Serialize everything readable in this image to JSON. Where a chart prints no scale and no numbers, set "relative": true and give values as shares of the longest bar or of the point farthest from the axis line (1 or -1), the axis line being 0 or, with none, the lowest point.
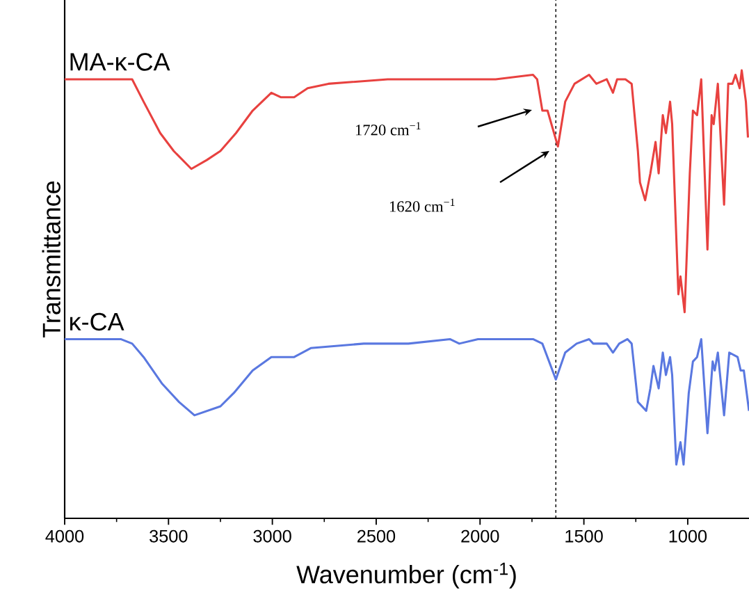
{
  "chart_data": {
    "type": "line",
    "relative": true,
    "xlabel": "Wavenumber (cm$^{-1}$)",
    "ylabel": "Transmittance",
    "xlim": [
      4000,
      705
    ],
    "xticks": [
      4000,
      {
        "value": 3750,
        "label": null
      },
      3500,
      {
        "value": 3250,
        "label": null
      },
      3000,
      {
        "value": 2750,
        "label": null
      },
      2500,
      {
        "value": 2250,
        "label": null
      },
      2000,
      {
        "value": 1750,
        "label": null
      },
      1500,
      {
        "value": 1250,
        "label": null
      },
      1000
    ],
    "tick_labels": "x",
    "series": [
      {
        "name": "MA-κ-CA",
        "color": "#e8413f",
        "x": [
          4000,
          3710,
          3675,
          3620,
          3540,
          3475,
          3390,
          3315,
          3250,
          3175,
          3095,
          3005,
          2960,
          2940,
          2895,
          2830,
          2730,
          2445,
          2370,
          2145,
          1925,
          1745,
          1725,
          1700,
          1675,
          1625,
          1590,
          1545,
          1475,
          1440,
          1390,
          1360,
          1340,
          1300,
          1270,
          1240,
          1230,
          1205,
          1180,
          1155,
          1140,
          1120,
          1105,
          1085,
          1075,
          1045,
          1035,
          1015,
          990,
          975,
          955,
          935,
          905,
          885,
          875,
          855,
          825,
          805,
          785,
          770,
          750,
          740,
          720,
          710
        ],
        "values": [
          0.98,
          0.98,
          0.98,
          0.93,
          0.86,
          0.82,
          0.78,
          0.8,
          0.82,
          0.86,
          0.91,
          0.95,
          0.94,
          0.94,
          0.94,
          0.96,
          0.97,
          0.98,
          0.98,
          0.98,
          0.98,
          0.99,
          0.98,
          0.91,
          0.91,
          0.83,
          0.93,
          0.97,
          0.99,
          0.97,
          0.98,
          0.95,
          0.98,
          0.98,
          0.97,
          0.82,
          0.75,
          0.71,
          0.77,
          0.84,
          0.77,
          0.9,
          0.86,
          0.93,
          0.88,
          0.5,
          0.54,
          0.46,
          0.77,
          0.91,
          0.9,
          0.98,
          0.6,
          0.9,
          0.88,
          0.97,
          0.7,
          0.97,
          0.97,
          0.99,
          0.96,
          1.0,
          0.93,
          0.85
        ]
      },
      {
        "name": "κ-CA",
        "color": "#5a78e0",
        "x": [
          4000,
          3730,
          3675,
          3620,
          3530,
          3450,
          3375,
          3250,
          3185,
          3095,
          3005,
          2895,
          2815,
          2560,
          2345,
          2145,
          2100,
          2010,
          1745,
          1700,
          1635,
          1590,
          1535,
          1475,
          1455,
          1390,
          1360,
          1330,
          1290,
          1270,
          1240,
          1200,
          1180,
          1165,
          1140,
          1120,
          1105,
          1085,
          1075,
          1055,
          1035,
          1020,
          995,
          975,
          955,
          935,
          905,
          880,
          870,
          855,
          825,
          800,
          760,
          745,
          730,
          705
        ],
        "values": [
          0.4,
          0.4,
          0.39,
          0.36,
          0.3,
          0.26,
          0.23,
          0.25,
          0.28,
          0.33,
          0.36,
          0.36,
          0.38,
          0.39,
          0.39,
          0.4,
          0.39,
          0.4,
          0.4,
          0.39,
          0.31,
          0.37,
          0.39,
          0.4,
          0.39,
          0.39,
          0.37,
          0.39,
          0.4,
          0.39,
          0.26,
          0.24,
          0.29,
          0.34,
          0.29,
          0.37,
          0.32,
          0.36,
          0.32,
          0.12,
          0.17,
          0.12,
          0.28,
          0.35,
          0.36,
          0.4,
          0.19,
          0.35,
          0.33,
          0.37,
          0.23,
          0.37,
          0.36,
          0.33,
          0.33,
          0.24
        ]
      }
    ],
    "ref_lines": [
      {
        "axis": "x",
        "value": 1635,
        "line_style": "dashed",
        "color": "#000000"
      }
    ],
    "annotations": [
      "1720 cm$^{−1}$",
      "1620 cm$^{−1}$"
    ],
    "line_style": "solid"
  }
}
